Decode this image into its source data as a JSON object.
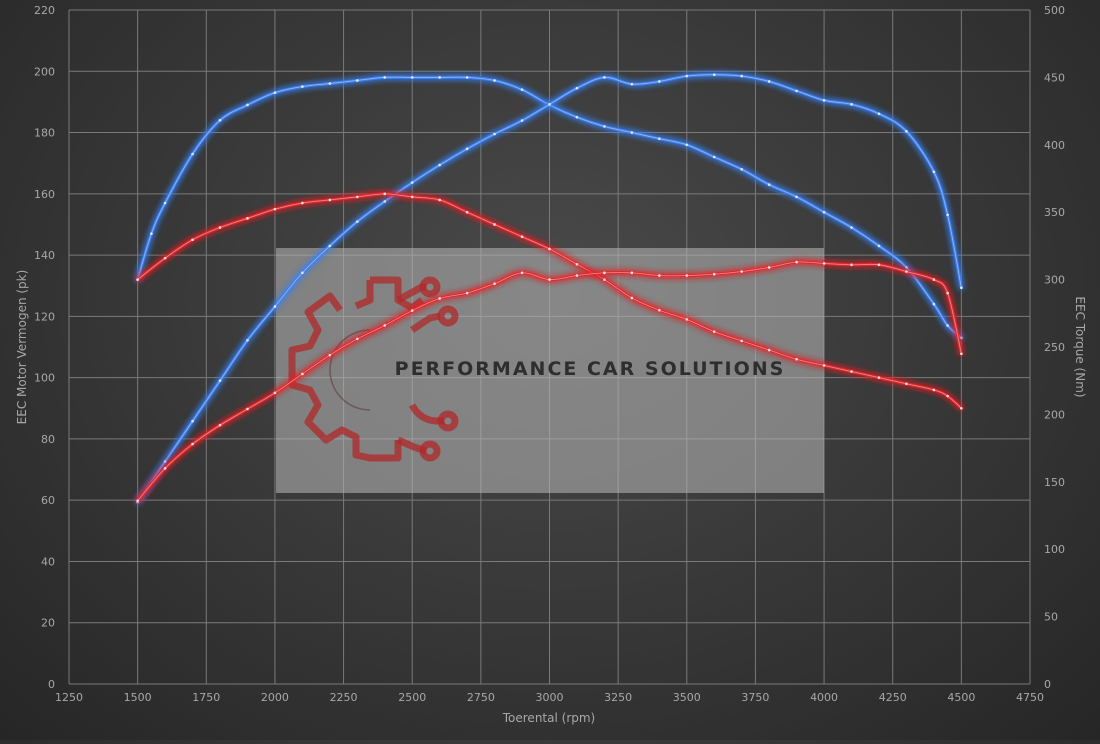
{
  "chart_data": {
    "type": "line",
    "xlabel": "Toerental (rpm)",
    "ylabel_left": "EEC Motor Vermogen (pk)",
    "ylabel_right": "EEC Torque (Nm)",
    "xlim": [
      1250,
      4750
    ],
    "xticks": [
      1250,
      1500,
      1750,
      2000,
      2250,
      2500,
      2750,
      3000,
      3250,
      3500,
      3750,
      4000,
      4250,
      4500,
      4750
    ],
    "ylim_left": [
      0,
      220
    ],
    "yticks_left": [
      0,
      20,
      40,
      60,
      80,
      100,
      120,
      140,
      160,
      180,
      200,
      220
    ],
    "ylim_right": [
      0,
      500
    ],
    "yticks_right": [
      0,
      50,
      100,
      150,
      200,
      250,
      300,
      350,
      400,
      450,
      500
    ],
    "grid": true,
    "series": [
      {
        "axis": "left",
        "color": "#3a7ff0",
        "x": [
          1500,
          1550,
          1600,
          1700,
          1800,
          1900,
          2000,
          2100,
          2200,
          2300,
          2400,
          2500,
          2600,
          2700,
          2800,
          2900,
          3000,
          3100,
          3200,
          3300,
          3400,
          3500,
          3600,
          3700,
          3800,
          3900,
          4000,
          4100,
          4200,
          4300,
          4400,
          4450,
          4500
        ],
        "values": [
          132,
          147,
          157,
          173,
          184,
          189,
          193,
          195,
          196,
          197,
          198,
          198,
          198,
          198,
          197,
          194,
          189,
          185,
          182,
          180,
          178,
          176,
          172,
          168,
          163,
          159,
          154,
          149,
          143,
          136,
          124,
          117,
          113
        ]
      },
      {
        "axis": "right",
        "color": "#3a7ff0",
        "x": [
          1500,
          1600,
          1700,
          1800,
          1900,
          2000,
          2100,
          2200,
          2300,
          2400,
          2500,
          2600,
          2700,
          2800,
          2900,
          3000,
          3100,
          3200,
          3300,
          3400,
          3500,
          3600,
          3700,
          3800,
          3900,
          4000,
          4100,
          4200,
          4300,
          4400,
          4450,
          4500
        ],
        "values": [
          135,
          165,
          195,
          225,
          255,
          280,
          305,
          325,
          343,
          358,
          372,
          385,
          397,
          408,
          418,
          430,
          442,
          450,
          445,
          447,
          451,
          452,
          451,
          447,
          440,
          433,
          430,
          423,
          410,
          380,
          348,
          294
        ]
      },
      {
        "axis": "left",
        "color": "#e0262b",
        "x": [
          1500,
          1600,
          1700,
          1800,
          1900,
          2000,
          2100,
          2200,
          2300,
          2400,
          2500,
          2600,
          2700,
          2800,
          2900,
          3000,
          3100,
          3200,
          3300,
          3400,
          3500,
          3600,
          3700,
          3800,
          3900,
          4000,
          4100,
          4200,
          4300,
          4400,
          4450,
          4500
        ],
        "values": [
          132,
          139,
          145,
          149,
          152,
          155,
          157,
          158,
          159,
          160,
          159,
          158,
          154,
          150,
          146,
          142,
          137,
          132,
          126,
          122,
          119,
          115,
          112,
          109,
          106,
          104,
          102,
          100,
          98,
          96,
          94,
          90
        ]
      },
      {
        "axis": "right",
        "color": "#e0262b",
        "x": [
          1500,
          1600,
          1700,
          1800,
          1900,
          2000,
          2100,
          2200,
          2300,
          2400,
          2500,
          2600,
          2700,
          2800,
          2900,
          3000,
          3100,
          3200,
          3300,
          3400,
          3500,
          3600,
          3700,
          3800,
          3900,
          4000,
          4100,
          4200,
          4300,
          4400,
          4450,
          4500
        ],
        "values": [
          136,
          160,
          178,
          192,
          204,
          216,
          230,
          244,
          256,
          266,
          277,
          286,
          290,
          297,
          305,
          300,
          303,
          305,
          305,
          303,
          303,
          304,
          306,
          309,
          313,
          312,
          311,
          311,
          306,
          300,
          290,
          245
        ]
      }
    ]
  },
  "watermark": {
    "text": "PERFORMANCE CAR SOLUTIONS",
    "logo_color": "#b32626"
  }
}
